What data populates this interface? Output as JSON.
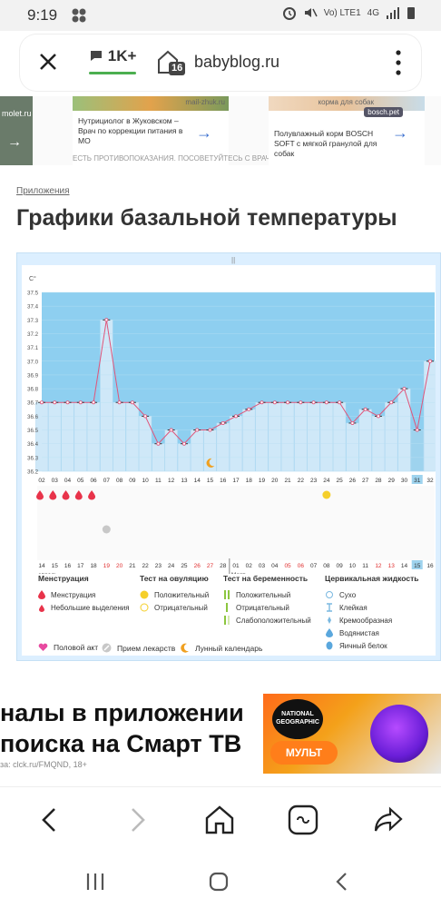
{
  "statusbar": {
    "time": "9:19",
    "signal": "Vo) LTE1",
    "network": "4G"
  },
  "urlbar": {
    "comments": "1K+",
    "tab_count": "16",
    "domain": "babyblog.ru"
  },
  "ads": {
    "left_text": "molet.ru",
    "card1_text": "Нутрициолог в Жуковском – Врач по коррекции питания в МО",
    "card1_domain": "mail-zhuk.ru",
    "disclaimer": "ЕСТЬ ПРОТИВОПОКАЗАНИЯ. ПОСОВЕТУЙТЕСЬ С ВРАЧОМ",
    "card2_text": "Полувлажный корм BOSCH SOFT с мягкой гранулой для собак",
    "card2_top": "корма для собак",
    "card2_badge": "bosch.pet"
  },
  "breadcrumb": "Приложения",
  "page_title": "Графики базальной температуры",
  "chart_data": {
    "type": "line",
    "y_unit": "C°",
    "yticks": [
      "37.5",
      "37.4",
      "37.3",
      "37.2",
      "37.1",
      "37.0",
      "36.9",
      "36.8",
      "36.7",
      "36.6",
      "36.5",
      "36.4",
      "36.3",
      "36.2"
    ],
    "ylim": [
      36.2,
      37.5
    ],
    "cycle_days": [
      "02",
      "03",
      "04",
      "05",
      "06",
      "07",
      "08",
      "09",
      "10",
      "11",
      "12",
      "13",
      "14",
      "15",
      "16",
      "17",
      "18",
      "19",
      "20",
      "21",
      "22",
      "23",
      "24",
      "25",
      "26",
      "27",
      "28",
      "29",
      "30",
      "31",
      "32"
    ],
    "values": [
      36.7,
      36.7,
      36.7,
      36.7,
      36.7,
      37.3,
      36.7,
      36.7,
      36.6,
      36.4,
      36.5,
      36.4,
      36.5,
      36.5,
      36.55,
      36.6,
      36.65,
      36.7,
      36.7,
      36.7,
      36.7,
      36.7,
      36.7,
      36.7,
      36.55,
      36.65,
      36.6,
      36.7,
      36.8,
      36.5,
      37.0
    ],
    "dates": [
      "14",
      "15",
      "16",
      "17",
      "18",
      "19",
      "20",
      "21",
      "22",
      "23",
      "24",
      "25",
      "26",
      "27",
      "28",
      "01",
      "02",
      "03",
      "04",
      "05",
      "06",
      "07",
      "08",
      "09",
      "10",
      "11",
      "12",
      "13",
      "14",
      "15",
      "16"
    ],
    "red_dates": [
      "19",
      "20",
      "26",
      "27",
      "05",
      "06",
      "12",
      "13"
    ],
    "highlight_day": "31",
    "highlight_date": "16",
    "month_left": "евраль",
    "month_right": "Март"
  },
  "legend": {
    "menstruation_title": "Менструация",
    "menstruation_items": [
      "Менструация",
      "Небольшие выделения"
    ],
    "ovulation_title": "Тест на овуляцию",
    "ovulation_items": [
      "Положительный",
      "Отрицательный"
    ],
    "pregnancy_title": "Тест на беременность",
    "pregnancy_items": [
      "Положительный",
      "Отрицательный",
      "Слабоположительный"
    ],
    "cervical_title": "Цервикальная жидкость",
    "cervical_items": [
      "Сухо",
      "Клейкая",
      "Кремообразная",
      "Водянистая",
      "Яичный белок"
    ],
    "bottom": [
      "Половой акт",
      "Прием лекарств",
      "Лунный календарь"
    ]
  },
  "banner": {
    "line1": "налы в приложении",
    "line2": "поиска на Смарт ТВ",
    "source": "за: clck.ru/FMQND, 18+",
    "badge1": "NATIONAL GEOGRAPHIC",
    "badge2": "МУЛЬТ"
  },
  "colors": {
    "chart_bg": "#8ecff0",
    "bar": "#cfe8f8",
    "line": "#e0557a",
    "highlight": "#9ed3ee",
    "menstruation": "#e8334a",
    "ovulation": "#f5cf2a",
    "pregnancy": "#8cc63f"
  }
}
